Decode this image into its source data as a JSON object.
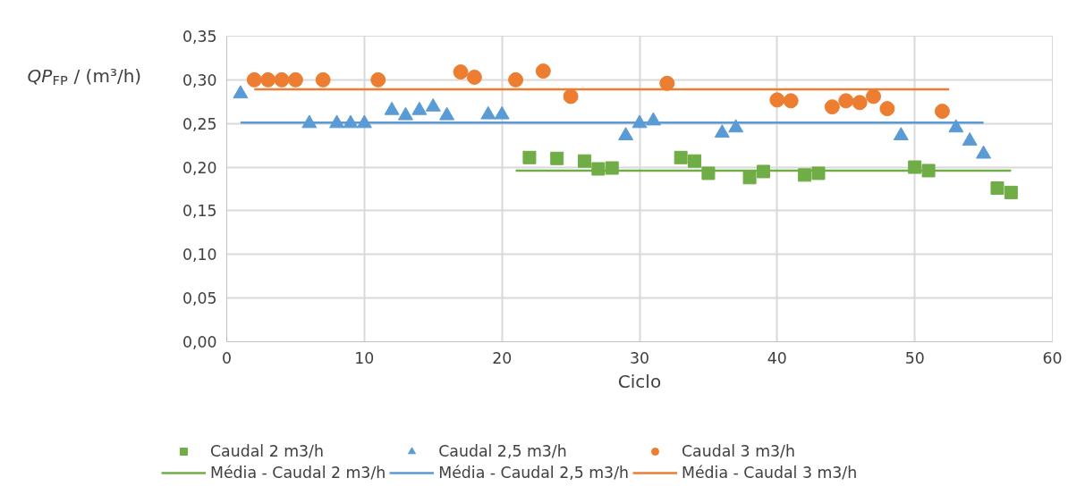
{
  "chart_data": {
    "type": "scatter",
    "xlabel": "Ciclo",
    "ylabel": "QP$_{FP}$ / (m³/h)",
    "xlim": [
      0,
      60
    ],
    "xticks": [
      0,
      10,
      20,
      30,
      40,
      50,
      60
    ],
    "ylim": [
      0,
      0.35
    ],
    "yticks": [
      {
        "value": 0,
        "label": "0,00"
      },
      {
        "value": 0.05,
        "label": "0,05"
      },
      {
        "value": 0.1,
        "label": "0,10"
      },
      {
        "value": 0.15,
        "label": "0,15"
      },
      {
        "value": 0.2,
        "label": "0,20"
      },
      {
        "value": 0.25,
        "label": "0,25"
      },
      {
        "value": 0.3,
        "label": "0,30"
      },
      {
        "value": 0.35,
        "label": "0,35"
      }
    ],
    "grid": true,
    "legend": "bottom",
    "series": [
      {
        "name": "Caudal 2 m3/h",
        "marker": "square",
        "color": "#70ad47",
        "x": [
          22,
          24,
          26,
          27,
          28,
          33,
          34,
          35,
          38,
          39,
          42,
          43,
          50,
          51,
          56,
          57
        ],
        "values": [
          0.211,
          0.21,
          0.207,
          0.198,
          0.199,
          0.211,
          0.207,
          0.193,
          0.188,
          0.195,
          0.191,
          0.193,
          0.2,
          0.196,
          0.176,
          0.171
        ]
      },
      {
        "name": "Caudal 2,5 m3/h",
        "marker": "triangle",
        "color": "#5b9bd5",
        "x": [
          1,
          6,
          8,
          9,
          10,
          12,
          13,
          14,
          15,
          16,
          19,
          20,
          29,
          30,
          31,
          36,
          37,
          49,
          53,
          54,
          55
        ],
        "values": [
          0.284,
          0.25,
          0.25,
          0.25,
          0.25,
          0.265,
          0.259,
          0.265,
          0.269,
          0.259,
          0.26,
          0.26,
          0.236,
          0.25,
          0.253,
          0.239,
          0.245,
          0.236,
          0.245,
          0.23,
          0.215
        ]
      },
      {
        "name": "Caudal 3 m3/h",
        "marker": "circle",
        "color": "#ed7d31",
        "x": [
          2,
          3,
          4,
          5,
          7,
          11,
          17,
          18,
          21,
          23,
          25,
          32,
          40,
          41,
          44,
          45,
          46,
          47,
          48,
          52
        ],
        "values": [
          0.3,
          0.3,
          0.3,
          0.3,
          0.3,
          0.3,
          0.309,
          0.303,
          0.3,
          0.31,
          0.281,
          0.296,
          0.277,
          0.276,
          0.269,
          0.276,
          0.274,
          0.281,
          0.267,
          0.264
        ]
      },
      {
        "name": "Média - Caudal 2 m3/h",
        "type": "line",
        "marker": "none",
        "color": "#70ad47",
        "x": [
          21,
          57
        ],
        "values": [
          0.196,
          0.196
        ]
      },
      {
        "name": "Média - Caudal 2,5 m3/h",
        "type": "line",
        "marker": "none",
        "color": "#5b9bd5",
        "x": [
          1,
          55
        ],
        "values": [
          0.251,
          0.251
        ]
      },
      {
        "name": "Média - Caudal 3 m3/h",
        "type": "line",
        "marker": "none",
        "color": "#ed7d31",
        "x": [
          2,
          52.5
        ],
        "values": [
          0.289,
          0.289
        ]
      }
    ]
  }
}
